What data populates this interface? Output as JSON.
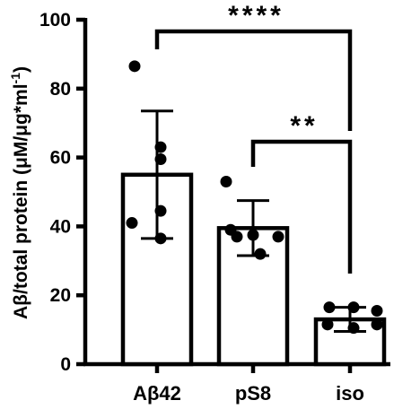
{
  "chart_data": {
    "type": "bar",
    "categories": [
      "Aβ42",
      "pS8",
      "iso"
    ],
    "values": [
      55,
      39.5,
      13
    ],
    "error": [
      18.5,
      8,
      3.5
    ],
    "points": [
      [
        86.5,
        63,
        59.5,
        44.5,
        41,
        36.5
      ],
      [
        53,
        39,
        37.5,
        37,
        37,
        32
      ],
      [
        16.5,
        16.5,
        15.5,
        11.5,
        11.5,
        10.5
      ]
    ],
    "ylim": [
      0,
      100
    ],
    "yticks": [
      0,
      20,
      40,
      60,
      80,
      100
    ],
    "ylabel_main": "Aβ/total protein (",
    "ylabel_unit": "μM/μg*ml",
    "ylabel_exp": "-1",
    "ylabel_close": ")",
    "xlabel": "",
    "significance": [
      {
        "from": "Aβ42",
        "to": "iso",
        "label": "****"
      },
      {
        "from": "pS8",
        "to": "iso",
        "label": "**"
      }
    ]
  }
}
